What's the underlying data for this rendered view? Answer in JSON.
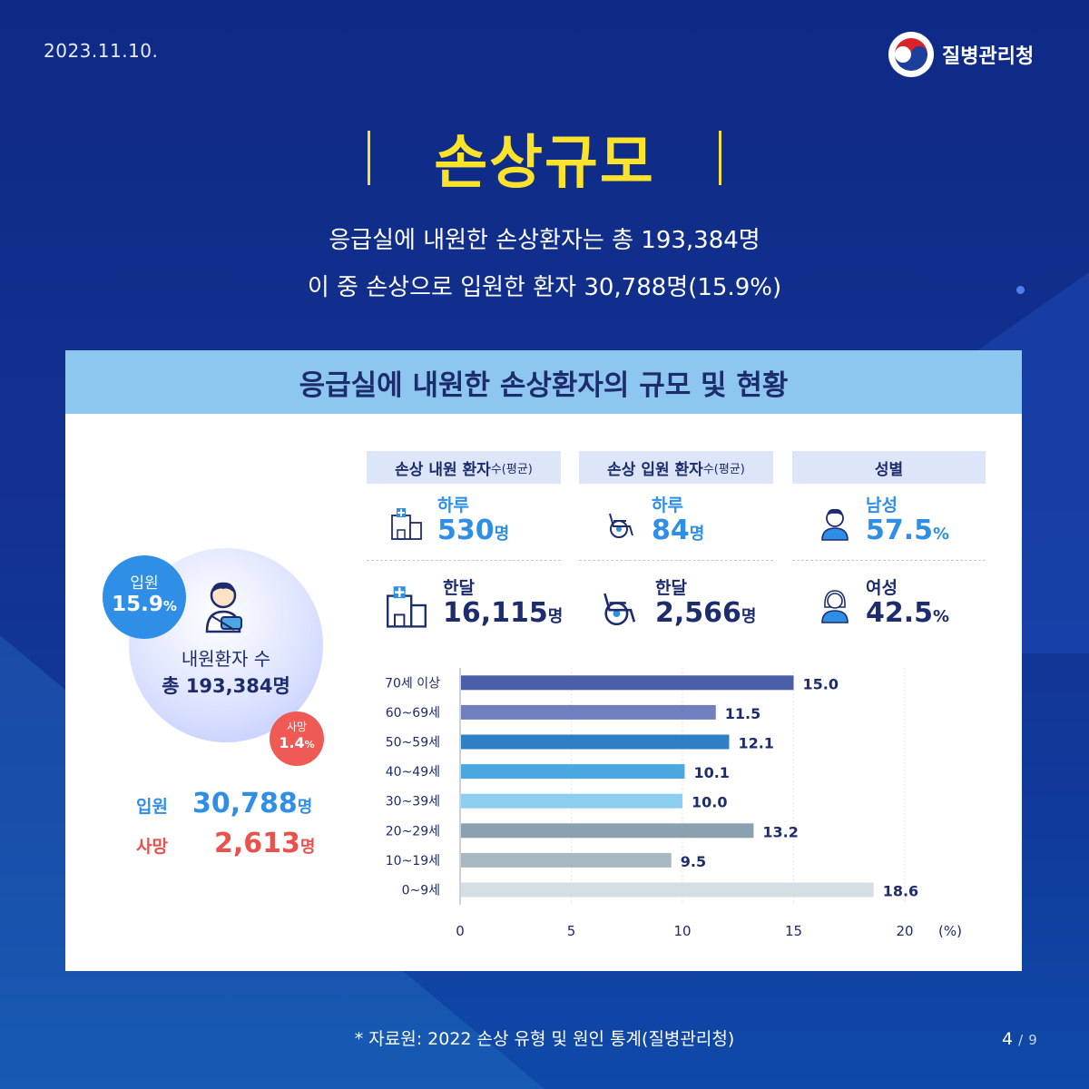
{
  "date": "2023.11.10.",
  "logo_text": "질병관리청",
  "title": "손상규모",
  "subtitle_line1": "응급실에 내원한 손상환자는 총 193,384명",
  "subtitle_line2": "이 중 손상으로 입원한 환자 30,788명(15.9%)",
  "card_title": "응급실에 내원한 손상환자의 규모 및 현황",
  "circle": {
    "label": "내원환자 수",
    "total": "총 193,384명",
    "admit_badge_label": "입원",
    "admit_badge_value": "15.9",
    "death_badge_label": "사망",
    "death_badge_value": "1.4",
    "pct": "%"
  },
  "stats": {
    "admit_label": "입원",
    "admit_value": "30,788",
    "admit_unit": "명",
    "death_label": "사망",
    "death_value": "2,613",
    "death_unit": "명"
  },
  "columns": {
    "visits": {
      "head": "손상 내원 환자",
      "head_small": "수(평균)",
      "day_label": "하루",
      "day_value": "530",
      "day_unit": "명",
      "month_label": "한달",
      "month_value": "16,115",
      "month_unit": "명"
    },
    "admits": {
      "head": "손상 입원 환자",
      "head_small": "수(평균)",
      "day_label": "하루",
      "day_value": "84",
      "day_unit": "명",
      "month_label": "한달",
      "month_value": "2,566",
      "month_unit": "명"
    },
    "gender": {
      "head": "성별",
      "male_label": "남성",
      "male_value": "57.5",
      "male_unit": "%",
      "female_label": "여성",
      "female_value": "42.5",
      "female_unit": "%"
    }
  },
  "chart_data": {
    "type": "bar",
    "orientation": "horizontal",
    "categories": [
      "70세 이상",
      "60~69세",
      "50~59세",
      "40~49세",
      "30~39세",
      "20~29세",
      "10~19세",
      "0~9세"
    ],
    "values": [
      15.0,
      11.5,
      12.1,
      10.1,
      10.0,
      13.2,
      9.5,
      18.6
    ],
    "value_labels": [
      "15.0",
      "11.5",
      "12.1",
      "10.1",
      "10.0",
      "13.2",
      "9.5",
      "18.6"
    ],
    "colors": [
      "#4b5fa8",
      "#6f7fbf",
      "#2f7fc4",
      "#4aa7df",
      "#8ccdf0",
      "#8aa2b0",
      "#a8b8c2",
      "#d5dee3"
    ],
    "xlim": [
      0,
      20
    ],
    "xticks": [
      "0",
      "5",
      "10",
      "15",
      "20"
    ],
    "x_unit": "(%)",
    "grid": true
  },
  "footnote": "* 자료원: 2022 손상 유형 및 원인 통계(질병관리청)",
  "pager": {
    "current": "4",
    "sep": "/",
    "total": "9"
  }
}
